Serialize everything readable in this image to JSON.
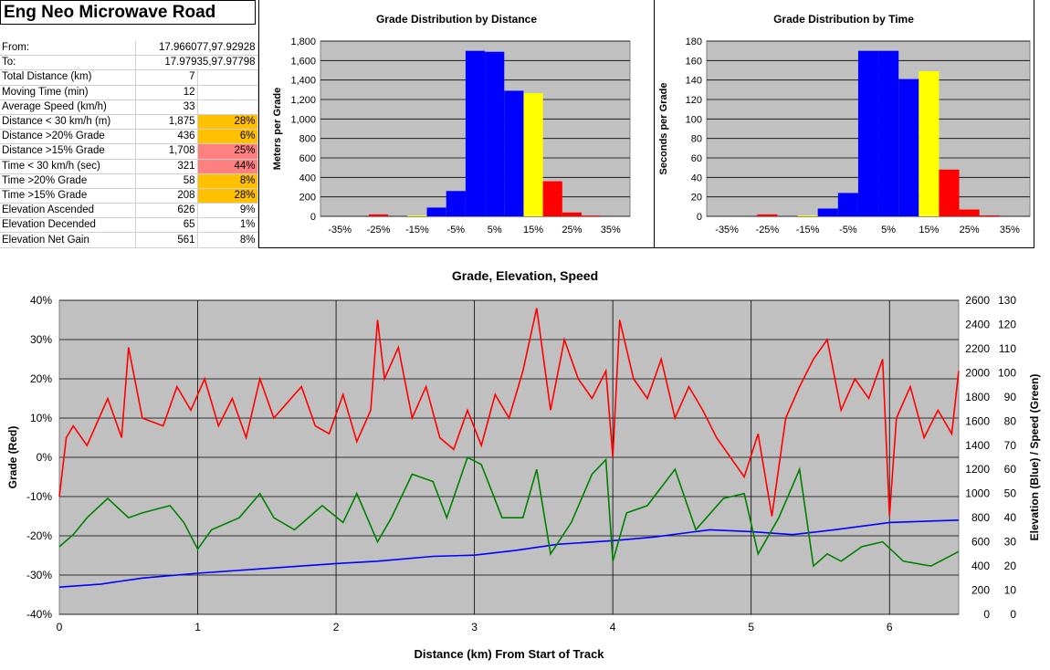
{
  "title": "Eng Neo Microwave Road",
  "stats": [
    {
      "label": "From:",
      "value": "17.966077,97.92928",
      "pct": "",
      "pct_color": "",
      "span": true
    },
    {
      "label": "To:",
      "value": "17.97935,97.97798",
      "pct": "",
      "pct_color": "",
      "span": true
    },
    {
      "label": "Total Distance (km)",
      "value": "7",
      "pct": "",
      "pct_color": ""
    },
    {
      "label": "Moving Time (min)",
      "value": "12",
      "pct": "",
      "pct_color": ""
    },
    {
      "label": "Average Speed (km/h)",
      "value": "33",
      "pct": "",
      "pct_color": ""
    },
    {
      "label": "Distance < 30 km/h (m)",
      "value": "1,875",
      "pct": "28%",
      "pct_color": "orange"
    },
    {
      "label": "Distance >20% Grade",
      "value": "436",
      "pct": "6%",
      "pct_color": "orange"
    },
    {
      "label": "Distance >15% Grade",
      "value": "1,708",
      "pct": "25%",
      "pct_color": "pink"
    },
    {
      "label": "Time < 30 km/h (sec)",
      "value": "321",
      "pct": "44%",
      "pct_color": "pink"
    },
    {
      "label": "Time >20% Grade",
      "value": "58",
      "pct": "8%",
      "pct_color": "orange"
    },
    {
      "label": "Time >15% Grade",
      "value": "208",
      "pct": "28%",
      "pct_color": "orange"
    },
    {
      "label": "Elevation Ascended",
      "value": "626",
      "pct": "9%",
      "pct_color": ""
    },
    {
      "label": "Elevation Decended",
      "value": "65",
      "pct": "1%",
      "pct_color": ""
    },
    {
      "label": "Elevation Net Gain",
      "value": "561",
      "pct": "8%",
      "pct_color": ""
    }
  ],
  "colors": {
    "blue": "#0000ff",
    "yellow": "#ffff00",
    "red": "#ff0000",
    "green": "#008000",
    "plot_bg": "#c0c0c0",
    "orange": "#ffc000",
    "pink": "#ff8080"
  },
  "chart_data": [
    {
      "type": "bar",
      "title": "Grade Distribution by Distance",
      "ylabel": "Meters per Grade",
      "xlabel": "",
      "x_ticks": [
        "-35%",
        "-25%",
        "-15%",
        "-5%",
        "5%",
        "15%",
        "25%",
        "35%"
      ],
      "y_ticks": [
        "0",
        "200",
        "400",
        "600",
        "800",
        "1,000",
        "1,200",
        "1,400",
        "1,600",
        "1,800"
      ],
      "ylim": [
        0,
        1800
      ],
      "bins": [
        {
          "grade": -25,
          "value": 20,
          "color": "red"
        },
        {
          "grade": -15,
          "value": 10,
          "color": "yellow"
        },
        {
          "grade": -10,
          "value": 90,
          "color": "blue"
        },
        {
          "grade": -5,
          "value": 260,
          "color": "blue"
        },
        {
          "grade": 0,
          "value": 1700,
          "color": "blue"
        },
        {
          "grade": 5,
          "value": 1690,
          "color": "blue"
        },
        {
          "grade": 10,
          "value": 1290,
          "color": "blue"
        },
        {
          "grade": 15,
          "value": 1265,
          "color": "yellow"
        },
        {
          "grade": 20,
          "value": 360,
          "color": "red"
        },
        {
          "grade": 25,
          "value": 40,
          "color": "red"
        },
        {
          "grade": 30,
          "value": 8,
          "color": "red"
        }
      ],
      "grid": true
    },
    {
      "type": "bar",
      "title": "Grade Distribution by Time",
      "ylabel": "Seconds per Grade",
      "xlabel": "",
      "x_ticks": [
        "-35%",
        "-25%",
        "-15%",
        "-5%",
        "5%",
        "15%",
        "25%",
        "35%"
      ],
      "y_ticks": [
        "0",
        "20",
        "40",
        "60",
        "80",
        "100",
        "120",
        "140",
        "160",
        "180"
      ],
      "ylim": [
        0,
        180
      ],
      "bins": [
        {
          "grade": -25,
          "value": 2,
          "color": "red"
        },
        {
          "grade": -15,
          "value": 1,
          "color": "yellow"
        },
        {
          "grade": -10,
          "value": 8,
          "color": "blue"
        },
        {
          "grade": -5,
          "value": 24,
          "color": "blue"
        },
        {
          "grade": 0,
          "value": 170,
          "color": "blue"
        },
        {
          "grade": 5,
          "value": 170,
          "color": "blue"
        },
        {
          "grade": 10,
          "value": 141,
          "color": "blue"
        },
        {
          "grade": 15,
          "value": 149,
          "color": "yellow"
        },
        {
          "grade": 20,
          "value": 48,
          "color": "red"
        },
        {
          "grade": 25,
          "value": 7,
          "color": "red"
        },
        {
          "grade": 30,
          "value": 1,
          "color": "red"
        }
      ],
      "grid": true
    },
    {
      "type": "line",
      "title": "Grade, Elevation, Speed",
      "xlabel": "Distance (km) From Start of Track",
      "ylabel": "Grade (Red)",
      "ylabel_right": "Elevation (Blue) / Speed (Green)",
      "x_ticks": [
        "0",
        "1",
        "2",
        "3",
        "4",
        "5",
        "6"
      ],
      "xlim": [
        0,
        6.5
      ],
      "y_ticks_left": [
        "-40%",
        "-30%",
        "-20%",
        "-10%",
        "0%",
        "10%",
        "20%",
        "30%",
        "40%"
      ],
      "y_ticks_elev": [
        "0",
        "200",
        "400",
        "600",
        "800",
        "1000",
        "1200",
        "1400",
        "1600",
        "1800",
        "2000",
        "2200",
        "2400",
        "2600"
      ],
      "y_ticks_speed": [
        "0",
        "10",
        "20",
        "30",
        "40",
        "50",
        "60",
        "70",
        "80",
        "90",
        "100",
        "110",
        "120",
        "130"
      ],
      "grid": true,
      "series": [
        {
          "color": "blue",
          "axis": "elevation",
          "x": [
            0,
            0.3,
            0.6,
            1.0,
            1.5,
            2.0,
            2.3,
            2.7,
            3.0,
            3.3,
            3.6,
            4.0,
            4.3,
            4.7,
            5.0,
            5.3,
            5.6,
            6.0,
            6.5
          ],
          "y": [
            225,
            250,
            300,
            340,
            380,
            420,
            440,
            480,
            490,
            530,
            580,
            610,
            640,
            700,
            685,
            660,
            700,
            760,
            780
          ]
        },
        {
          "color": "green",
          "axis": "speed",
          "x": [
            0,
            0.1,
            0.2,
            0.35,
            0.5,
            0.6,
            0.8,
            0.9,
            1.0,
            1.1,
            1.3,
            1.45,
            1.55,
            1.7,
            1.9,
            2.05,
            2.15,
            2.3,
            2.4,
            2.55,
            2.7,
            2.8,
            2.95,
            3.05,
            3.2,
            3.35,
            3.45,
            3.55,
            3.7,
            3.85,
            3.95,
            4.0,
            4.1,
            4.25,
            4.45,
            4.6,
            4.8,
            4.95,
            5.05,
            5.2,
            5.35,
            5.45,
            5.55,
            5.65,
            5.8,
            5.95,
            6.1,
            6.3,
            6.5
          ],
          "y": [
            28,
            33,
            40,
            48,
            40,
            42,
            45,
            38,
            27,
            35,
            40,
            50,
            40,
            35,
            45,
            38,
            50,
            30,
            40,
            58,
            55,
            40,
            65,
            62,
            40,
            40,
            60,
            25,
            38,
            58,
            64,
            22,
            42,
            45,
            60,
            35,
            48,
            50,
            25,
            40,
            60,
            20,
            25,
            22,
            28,
            30,
            22,
            20,
            26
          ]
        },
        {
          "color": "red",
          "axis": "grade",
          "x": [
            0,
            0.05,
            0.1,
            0.2,
            0.35,
            0.45,
            0.5,
            0.6,
            0.75,
            0.85,
            0.95,
            1.05,
            1.15,
            1.25,
            1.35,
            1.45,
            1.55,
            1.65,
            1.75,
            1.85,
            1.95,
            2.05,
            2.15,
            2.25,
            2.3,
            2.35,
            2.45,
            2.55,
            2.65,
            2.75,
            2.85,
            2.95,
            3.05,
            3.15,
            3.25,
            3.35,
            3.45,
            3.55,
            3.65,
            3.75,
            3.85,
            3.95,
            4.0,
            4.05,
            4.15,
            4.25,
            4.35,
            4.45,
            4.55,
            4.65,
            4.75,
            4.85,
            4.95,
            5.05,
            5.15,
            5.25,
            5.35,
            5.45,
            5.55,
            5.65,
            5.75,
            5.85,
            5.95,
            6.0,
            6.05,
            6.15,
            6.25,
            6.35,
            6.45,
            6.5
          ],
          "y": [
            -10,
            5,
            8,
            3,
            15,
            5,
            28,
            10,
            8,
            18,
            12,
            20,
            8,
            15,
            5,
            20,
            10,
            14,
            18,
            8,
            6,
            16,
            4,
            12,
            35,
            20,
            28,
            10,
            18,
            5,
            2,
            12,
            3,
            16,
            10,
            22,
            38,
            12,
            30,
            20,
            15,
            22,
            0,
            35,
            20,
            15,
            25,
            10,
            18,
            12,
            5,
            0,
            -5,
            6,
            -15,
            10,
            18,
            25,
            30,
            12,
            20,
            15,
            25,
            -15,
            10,
            18,
            5,
            12,
            6,
            22
          ]
        }
      ]
    }
  ]
}
